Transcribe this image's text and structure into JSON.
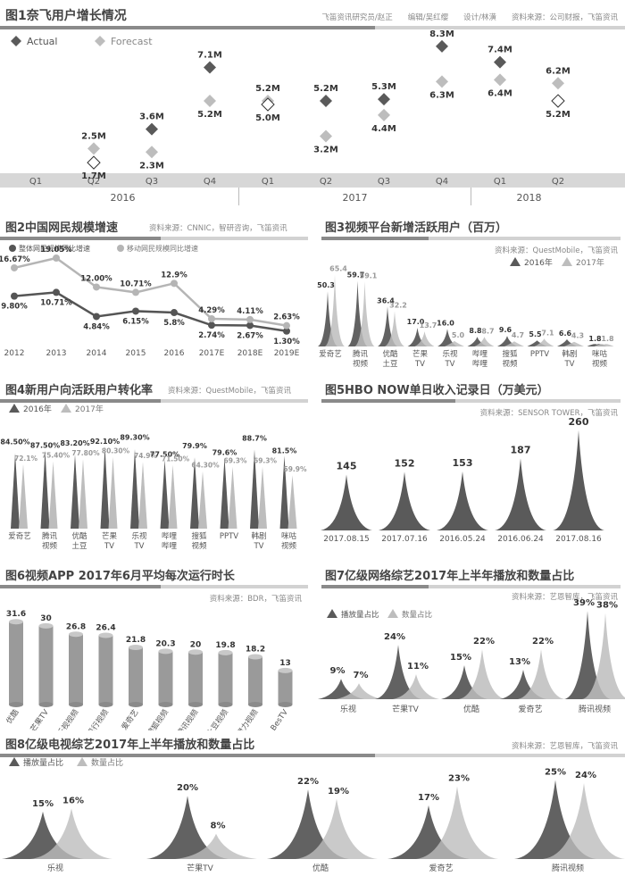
{
  "colors": {
    "dark": "#5a5a5a",
    "light": "#bdbdbd",
    "band": "#d7d7d7",
    "ul_dark": "#7a7a7a",
    "ul_light": "#cfcfcf"
  },
  "p1": {
    "title": "图1奈飞用户增长情况",
    "source": "飞笛资讯研究员/赵正　　编辑/吴红缨　　设计/林潢　　资料来源：公司财报，飞笛资讯",
    "chart_data": {
      "type": "scatter",
      "quarters": [
        "Q1",
        "Q2",
        "Q3",
        "Q4",
        "Q1",
        "Q2",
        "Q3",
        "Q4",
        "Q1",
        "Q2"
      ],
      "years": [
        {
          "label": "2016",
          "span": 4
        },
        {
          "label": "2017",
          "span": 4
        },
        {
          "label": "2018",
          "span": 2
        }
      ],
      "legend": [
        "Actual",
        "Forecast"
      ],
      "actual": [
        null,
        1.7,
        3.6,
        7.1,
        5.0,
        5.2,
        5.3,
        8.3,
        7.4,
        5.2
      ],
      "forecast": [
        null,
        2.5,
        2.3,
        5.2,
        5.2,
        3.2,
        4.4,
        6.3,
        6.4,
        6.2
      ],
      "actual_labels": [
        "",
        "1.7M",
        "3.6M",
        "7.1M",
        "5.0M",
        "5.2M",
        "5.3M",
        "8.3M",
        "7.4M",
        "5.2M"
      ],
      "forecast_labels": [
        "",
        "2.5M",
        "2.3M",
        "5.2M",
        "5.2M",
        "3.2M",
        "4.4M",
        "6.3M",
        "6.4M",
        "6.2M"
      ],
      "hollow_actual": [
        1,
        4,
        9
      ],
      "ylim": [
        1.2,
        8.9
      ]
    }
  },
  "p2": {
    "title": "图2中国网民规模增速",
    "source": "资料来源：CNNIC，智研咨询，飞笛资讯",
    "chart_data": {
      "type": "line",
      "categories": [
        "2012",
        "2013",
        "2014",
        "2015",
        "2016",
        "2017E",
        "2018E",
        "2019E"
      ],
      "series": [
        {
          "name": "整体网民规模同比增速",
          "values": [
            9.8,
            10.71,
            4.84,
            6.15,
            5.8,
            2.74,
            2.67,
            1.3
          ],
          "labels": [
            "9.80%",
            "10.71%",
            "4.84%",
            "6.15%",
            "5.8%",
            "2.74%",
            "2.67%",
            "1.30%"
          ]
        },
        {
          "name": "移动网民规模同比增速",
          "values": [
            16.67,
            19.05,
            12.0,
            10.71,
            12.9,
            4.29,
            4.11,
            2.63
          ],
          "labels": [
            "16.67%",
            "19.05%",
            "12.00%",
            "10.71%",
            "12.9%",
            "4.29%",
            "4.11%",
            "2.63%"
          ]
        }
      ],
      "ylim": [
        -2,
        21
      ]
    }
  },
  "p3": {
    "title": "图3视频平台新增活跃用户（百万）",
    "source": "资料来源：QuestMobile，飞笛资讯",
    "chart_data": {
      "type": "bar",
      "categories": [
        "爱奇艺",
        "腾讯\n视频",
        "优酷\n土豆",
        "芒果\nTV",
        "乐视\nTV",
        "哔哩\n哔哩",
        "搜狐\n视频",
        "PPTV",
        "韩剧\nTV",
        "咪咕\n视频"
      ],
      "series": [
        {
          "name": "2016年",
          "values": [
            50.3,
            59.7,
            36.4,
            17.0,
            16.0,
            8.8,
            9.6,
            5.5,
            6.6,
            1.8
          ],
          "labels": [
            "50.3",
            "59.7",
            "36.4",
            "17.0",
            "16.0",
            "8.8",
            "9.6",
            "5.5",
            "6.6",
            "1.8"
          ]
        },
        {
          "name": "2017年",
          "values": [
            65.4,
            59.1,
            32.2,
            13.7,
            5.0,
            8.7,
            4.7,
            7.1,
            4.3,
            1.8
          ],
          "labels": [
            "65.4",
            "59.1",
            "32.2",
            "13.7",
            "5.0",
            "8.7",
            "4.7",
            "7.1",
            "4.3",
            "1.8"
          ]
        }
      ],
      "ylim": [
        0,
        70
      ]
    }
  },
  "p4": {
    "title": "图4新用户向活跃用户转化率",
    "source": "资料来源：QuestMobile，飞笛资讯",
    "chart_data": {
      "type": "bar",
      "categories": [
        "爱奇艺",
        "腾讯\n视频",
        "优酷\n土豆",
        "芒果\nTV",
        "乐视\nTV",
        "哔哩\n哔哩",
        "搜狐\n视频",
        "PPTV",
        "韩剧\nTV",
        "咪咕\n视频"
      ],
      "series": [
        {
          "name": "2016年",
          "values": [
            84.5,
            87.5,
            83.2,
            92.1,
            89.3,
            77.5,
            79.9,
            79.6,
            88.7,
            81.5
          ],
          "labels": [
            "84.50%",
            "87.50%",
            "83.20%",
            "92.10%",
            "89.30%",
            "77.50%",
            "79.9%",
            "79.6%",
            "88.7%",
            "81.5%"
          ]
        },
        {
          "name": "2017年",
          "values": [
            72.1,
            75.4,
            77.8,
            80.3,
            74.9,
            71.5,
            64.3,
            69.3,
            69.3,
            59.9
          ],
          "labels": [
            "72.1%",
            "75.40%",
            "77.80%",
            "80.30%",
            "74.9%",
            "71.50%",
            "64.30%",
            "69.3%",
            "69.3%",
            "59.9%"
          ]
        }
      ],
      "ylim": [
        0,
        100
      ]
    }
  },
  "p5": {
    "title": "图5HBO NOW单日收入记录日（万美元）",
    "source": "资料来源：SENSOR TOWER，飞笛资讯",
    "chart_data": {
      "type": "bar",
      "categories": [
        "2017.08.15",
        "2017.07.16",
        "2016.05.24",
        "2016.06.24",
        "2017.08.16"
      ],
      "values": [
        145,
        152,
        153,
        187,
        260
      ],
      "labels": [
        "145",
        "152",
        "153",
        "187",
        "260"
      ],
      "ylim": [
        0,
        270
      ]
    }
  },
  "p6": {
    "title": "图6视频APP 2017年6月平均每次运行时长",
    "source": "资料来源：BDR，飞笛资讯",
    "chart_data": {
      "type": "bar",
      "categories": [
        "优酷",
        "芒果TV",
        "乐视视频",
        "风行视频",
        "爱奇艺",
        "搜狐视频",
        "腾讯视频",
        "土豆视频",
        "聚力视频",
        "BesTV"
      ],
      "values": [
        31.6,
        30,
        26.8,
        26.4,
        21.8,
        20.3,
        20,
        19.8,
        18.2,
        13
      ],
      "labels": [
        "31.6",
        "30",
        "26.8",
        "26.4",
        "21.8",
        "20.3",
        "20",
        "19.8",
        "18.2",
        "13"
      ],
      "ylim": [
        0,
        33
      ]
    }
  },
  "p7": {
    "title": "图7亿级网络综艺2017年上半年播放和数量占比",
    "source": "资料来源：艺恩智库，飞笛资讯",
    "chart_data": {
      "type": "bar",
      "categories": [
        "乐视",
        "芒果TV",
        "优酷",
        "爱奇艺",
        "腾讯视频"
      ],
      "series": [
        {
          "name": "播放量占比",
          "values": [
            9,
            24,
            15,
            13,
            39
          ],
          "labels": [
            "9%",
            "24%",
            "15%",
            "13%",
            "39%"
          ]
        },
        {
          "name": "数量占比",
          "values": [
            7,
            11,
            22,
            22,
            38
          ],
          "labels": [
            "7%",
            "11%",
            "22%",
            "22%",
            "38%"
          ]
        }
      ],
      "ylim": [
        0,
        41
      ]
    }
  },
  "p8": {
    "title": "图8亿级电视综艺2017年上半年播放和数量占比",
    "source": "资料来源：艺恩智库，飞笛资讯",
    "chart_data": {
      "type": "bar",
      "categories": [
        "乐视",
        "芒果TV",
        "优酷",
        "爱奇艺",
        "腾讯视频"
      ],
      "series": [
        {
          "name": "播放量占比",
          "values": [
            15,
            20,
            22,
            17,
            25
          ],
          "labels": [
            "15%",
            "20%",
            "22%",
            "17%",
            "25%"
          ]
        },
        {
          "name": "数量占比",
          "values": [
            16,
            8,
            19,
            23,
            24
          ],
          "labels": [
            "16%",
            "8%",
            "19%",
            "23%",
            "24%"
          ]
        }
      ],
      "ylim": [
        0,
        26
      ]
    }
  }
}
